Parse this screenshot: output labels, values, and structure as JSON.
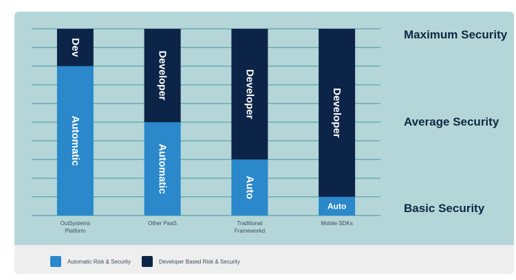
{
  "chart_data": {
    "type": "bar",
    "stacked": true,
    "categories": [
      "OutSystems\nPlatform",
      "Other PaaS",
      "Traditional\nFrameworkd",
      "Mobile SDKs"
    ],
    "series": [
      {
        "name": "Automatic Risk & Security",
        "values": [
          80,
          50,
          30,
          10
        ],
        "labels": [
          "Automatic",
          "Automatic",
          "Auto",
          "Auto"
        ],
        "color": "#2a88cb"
      },
      {
        "name": "Developer Based Risk & Security",
        "values": [
          20,
          50,
          70,
          90
        ],
        "labels": [
          "Dev",
          "Developer",
          "Developer",
          "Developer"
        ],
        "color": "#0c2447"
      }
    ],
    "ylim": [
      0,
      100
    ],
    "grid": true,
    "gridline_count": 11,
    "legend": "bottom",
    "y_levels": [
      {
        "label": "Maximum Security",
        "value": 97
      },
      {
        "label": "Average Security",
        "value": 50
      },
      {
        "label": "Basic Security",
        "value": 3
      }
    ]
  },
  "colors": {
    "background": "#b4d6d9",
    "grid": "#6aaab0",
    "automatic": "#2a88cb",
    "developer": "#0c2447",
    "legend_band": "#eeeeee"
  }
}
